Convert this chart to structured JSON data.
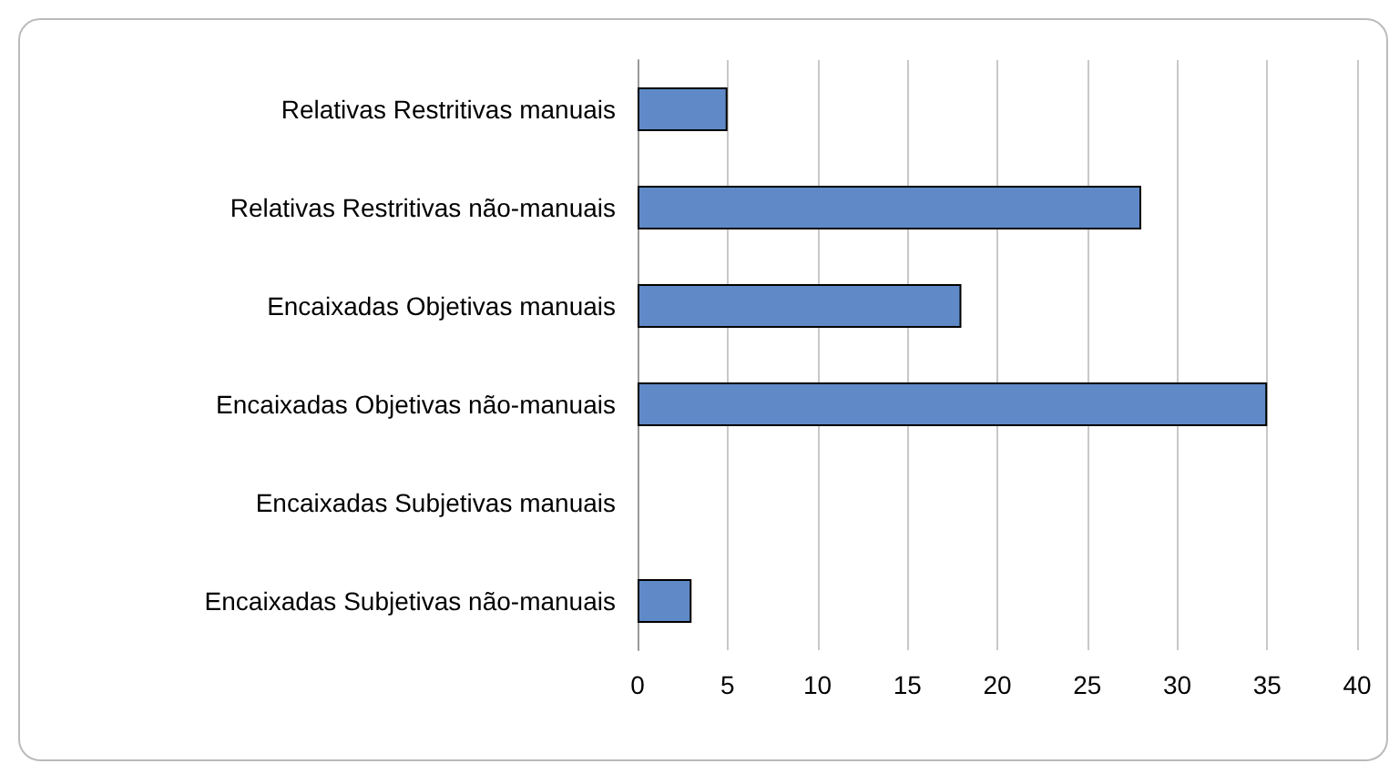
{
  "chart_data": {
    "type": "bar",
    "orientation": "horizontal",
    "categories": [
      "Relativas Restritivas manuais",
      "Relativas Restritivas não-manuais",
      "Encaixadas Objetivas manuais",
      "Encaixadas Objetivas não-manuais",
      "Encaixadas Subjetivas manuais",
      "Encaixadas Subjetivas não-manuais"
    ],
    "values": [
      5,
      28,
      18,
      35,
      0,
      3
    ],
    "color": "#5f8ac7",
    "xlim": [
      0,
      40
    ],
    "xticks": [
      0,
      5,
      10,
      15,
      20,
      25,
      30,
      35,
      40
    ],
    "grid": "x"
  }
}
